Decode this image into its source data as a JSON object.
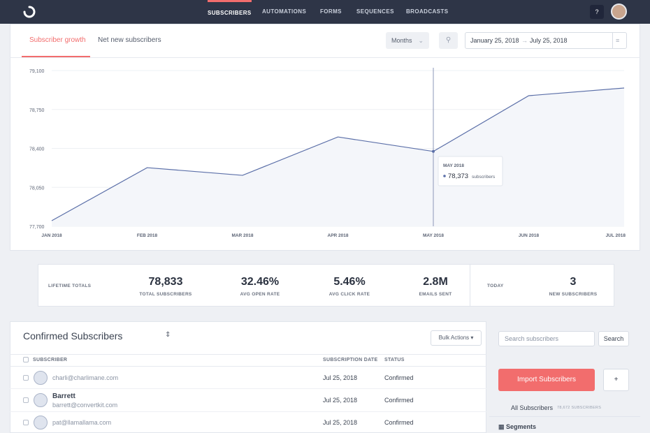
{
  "nav": {
    "items": [
      "SUBSCRIBERS",
      "AUTOMATIONS",
      "FORMS",
      "SEQUENCES",
      "BROADCASTS"
    ],
    "help": "?"
  },
  "tabs": [
    "Subscriber growth",
    "Net new subscribers"
  ],
  "period": "Months",
  "date_range": {
    "start": "January 25, 2018",
    "end": "July 25, 2018"
  },
  "chart_data": {
    "type": "line",
    "categories": [
      "JAN 2018",
      "FEB 2018",
      "MAR 2018",
      "APR 2018",
      "MAY 2018",
      "JUN 2018",
      "JUL 2018"
    ],
    "values": [
      77750,
      78227,
      78158,
      78503,
      78373,
      78874,
      78943
    ],
    "color": "#5b6fa8",
    "ylim": [
      77700,
      79100
    ],
    "yticks": [
      {
        "value": 77700,
        "label": "77,700"
      },
      {
        "value": 78050,
        "label": "78,050"
      },
      {
        "value": 78400,
        "label": "78,400"
      },
      {
        "value": 78750,
        "label": "78,750"
      },
      {
        "value": 79100,
        "label": "79,100"
      }
    ],
    "grid": true,
    "tooltip": {
      "title": "MAY 2018",
      "value": "78,373",
      "unit": "subscribers"
    }
  },
  "totals": {
    "label": "LIFETIME TOTALS",
    "stats": [
      {
        "value": "78,833",
        "label": "TOTAL SUBSCRIBERS"
      },
      {
        "value": "32.46%",
        "label": "AVG OPEN RATE"
      },
      {
        "value": "5.46%",
        "label": "AVG CLICK RATE"
      },
      {
        "value": "2.8M",
        "label": "EMAILS SENT"
      }
    ],
    "today": {
      "label": "TODAY",
      "value": "3",
      "caption": "NEW SUBSCRIBERS"
    }
  },
  "list": {
    "title": "Confirmed Subscribers",
    "bulk": "Bulk Actions",
    "columns": [
      "SUBSCRIBER",
      "SUBSCRIPTION DATE",
      "STATUS"
    ],
    "rows": [
      {
        "email": "charli@charlimane.com",
        "date": "Jul 25, 2018",
        "status": "Confirmed"
      },
      {
        "name": "Barrett",
        "email": "barrett@convertkit.com",
        "date": "Jul 25, 2018",
        "status": "Confirmed"
      },
      {
        "email": "pat@llamallama.com",
        "date": "Jul 25, 2018",
        "status": "Confirmed"
      }
    ]
  },
  "sidebar": {
    "search_placeholder": "Search subscribers",
    "search_button": "Search",
    "import": "Import Subscribers",
    "add": "+",
    "all": "All Subscribers",
    "count": "78,672 SUBSCRIBERS",
    "segments": "Segments"
  }
}
